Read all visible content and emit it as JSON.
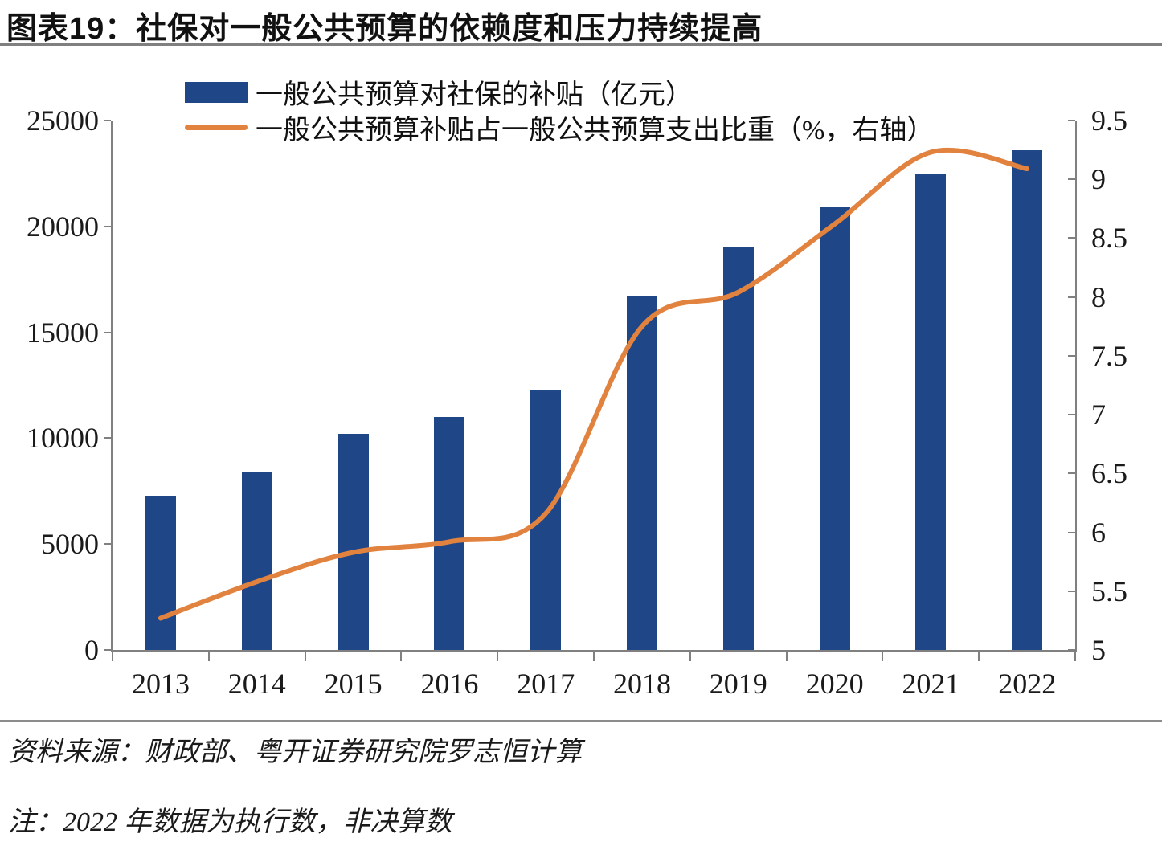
{
  "figure": {
    "title": "图表19：社保对一般公共预算的依赖度和压力持续提高",
    "source_note": "资料来源：财政部、粤开证券研究院罗志恒计算",
    "data_note": "注：2022 年数据为执行数，非决算数"
  },
  "colors": {
    "bar": "#1F4788",
    "line": "#E2823F",
    "axis": "#808080",
    "text": "#1a1a1a"
  },
  "chart_data": {
    "type": "bar",
    "subtype": "combo-bar-line-dual-axis",
    "categories": [
      "2013",
      "2014",
      "2015",
      "2016",
      "2017",
      "2018",
      "2019",
      "2020",
      "2021",
      "2022"
    ],
    "series": [
      {
        "name": "一般公共预算对社保的补贴（亿元）",
        "type": "bar",
        "axis": "left",
        "color": "#1F4788",
        "values": [
          7300,
          8400,
          10200,
          11000,
          12300,
          16700,
          19050,
          20900,
          22500,
          23600
        ]
      },
      {
        "name": "一般公共预算补贴占一般公共预算支出比重（%，右轴）",
        "type": "line",
        "axis": "right",
        "color": "#E2823F",
        "values": [
          5.27,
          5.58,
          5.83,
          5.92,
          6.16,
          7.75,
          8.04,
          8.62,
          9.23,
          9.09
        ]
      }
    ],
    "left_axis": {
      "min": 0,
      "max": 25000,
      "step": 5000,
      "tick_labels": [
        "0",
        "5000",
        "10000",
        "15000",
        "20000",
        "25000"
      ]
    },
    "right_axis": {
      "min": 5,
      "max": 9.5,
      "step": 0.5,
      "tick_labels": [
        "5",
        "5.5",
        "6",
        "6.5",
        "7",
        "7.5",
        "8",
        "8.5",
        "9",
        "9.5"
      ]
    },
    "grid": "off",
    "legend_position": "top-left"
  }
}
